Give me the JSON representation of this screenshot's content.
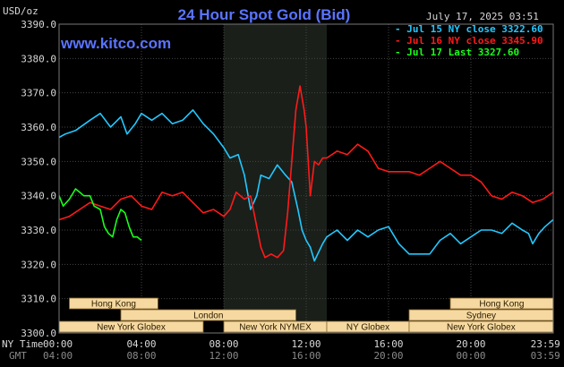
{
  "chart_data": {
    "type": "line",
    "title": "24 Hour Spot Gold (Bid)",
    "website": "www.kitco.com",
    "unit_label": "USD/oz",
    "timestamp": "July 17, 2025 03:51",
    "ylim": [
      3300,
      3390
    ],
    "yticks": [
      "3390.0",
      "3380.0",
      "3370.0",
      "3360.0",
      "3350.0",
      "3340.0",
      "3330.0",
      "3320.0",
      "3310.0",
      "3300.0"
    ],
    "xlim": [
      0,
      24
    ],
    "x_row_label_ny": "NY Time",
    "x_row_label_gmt": "GMT",
    "xticks_ny": [
      "00:00",
      "04:00",
      "08:00",
      "12:00",
      "16:00",
      "20:00",
      "23:59"
    ],
    "xticks_gmt": [
      "04:00",
      "08:00",
      "12:00",
      "16:00",
      "20:00",
      "00:00",
      "03:59"
    ],
    "grid": true,
    "legend_position": "top-right",
    "highlight_band": [
      8.0,
      13.0
    ],
    "series": [
      {
        "name": "Jul 15 NY close 3322.60",
        "color": "#22c8ff",
        "x": [
          0.0,
          0.3,
          0.8,
          1.5,
          2.0,
          2.5,
          3.0,
          3.3,
          3.7,
          4.0,
          4.5,
          5.0,
          5.5,
          6.0,
          6.5,
          7.0,
          7.5,
          8.0,
          8.3,
          8.7,
          9.0,
          9.3,
          9.6,
          9.8,
          10.2,
          10.6,
          11.0,
          11.3,
          11.6,
          11.8,
          12.0,
          12.2,
          12.4,
          12.8,
          13.0,
          13.5,
          14.0,
          14.5,
          15.0,
          15.5,
          16.0,
          16.5,
          17.0,
          17.5,
          18.0,
          18.5,
          19.0,
          19.5,
          20.0,
          20.5,
          21.0,
          21.5,
          22.0,
          22.5,
          22.8,
          23.0,
          23.3,
          23.6,
          23.99
        ],
        "y": [
          3357,
          3358,
          3359,
          3362,
          3364,
          3360,
          3363,
          3358,
          3361,
          3364,
          3362,
          3364,
          3361,
          3362,
          3365,
          3361,
          3358,
          3354,
          3351,
          3352,
          3346,
          3336,
          3340,
          3346,
          3345,
          3349,
          3346,
          3344,
          3336,
          3330,
          3327,
          3325,
          3321,
          3326,
          3328,
          3330,
          3327,
          3330,
          3328,
          3330,
          3331,
          3326,
          3323,
          3323,
          3323,
          3327,
          3329,
          3326,
          3328,
          3330,
          3330,
          3329,
          3332,
          3330,
          3329,
          3326,
          3329,
          3331,
          3333
        ]
      },
      {
        "name": "Jul 16 NY close 3345.90",
        "color": "#ff1a1a",
        "x": [
          0.0,
          0.5,
          1.0,
          1.5,
          2.0,
          2.5,
          3.0,
          3.5,
          4.0,
          4.5,
          5.0,
          5.5,
          6.0,
          6.5,
          7.0,
          7.5,
          8.0,
          8.3,
          8.6,
          9.0,
          9.3,
          9.6,
          9.8,
          10.0,
          10.3,
          10.6,
          10.9,
          11.1,
          11.3,
          11.5,
          11.7,
          11.9,
          12.0,
          12.2,
          12.4,
          12.6,
          12.8,
          13.0,
          13.5,
          14.0,
          14.5,
          15.0,
          15.5,
          16.0,
          16.5,
          17.0,
          17.5,
          18.0,
          18.5,
          19.0,
          19.5,
          20.0,
          20.5,
          21.0,
          21.5,
          22.0,
          22.5,
          23.0,
          23.5,
          23.99
        ],
        "y": [
          3333,
          3334,
          3336,
          3338,
          3337,
          3336,
          3339,
          3340,
          3337,
          3336,
          3341,
          3340,
          3341,
          3338,
          3335,
          3336,
          3334,
          3336,
          3341,
          3339,
          3340,
          3331,
          3325,
          3322,
          3323,
          3322,
          3324,
          3335,
          3350,
          3365,
          3372,
          3365,
          3360,
          3340,
          3350,
          3349,
          3351,
          3351,
          3353,
          3352,
          3355,
          3353,
          3348,
          3347,
          3347,
          3347,
          3346,
          3348,
          3350,
          3348,
          3346,
          3346,
          3344,
          3340,
          3339,
          3341,
          3340,
          3338,
          3339,
          3341
        ]
      },
      {
        "name": "Jul 17 Last 3327.60",
        "color": "#1aff1a",
        "x": [
          0.0,
          0.2,
          0.5,
          0.8,
          1.0,
          1.2,
          1.5,
          1.7,
          2.0,
          2.2,
          2.4,
          2.6,
          2.8,
          3.0,
          3.2,
          3.4,
          3.6,
          3.8,
          4.0
        ],
        "y": [
          3340,
          3337,
          3339,
          3342,
          3341,
          3340,
          3340,
          3337,
          3336,
          3331,
          3329,
          3328,
          3333,
          3336,
          3335,
          3331,
          3328,
          3328,
          3327
        ]
      }
    ],
    "session_bars": [
      {
        "label": "Hong Kong",
        "start": 0.5,
        "end": 4.8,
        "row": 0
      },
      {
        "label": "Hong Kong",
        "start": 19.0,
        "end": 23.99,
        "row": 0
      },
      {
        "label": "London",
        "start": 3.0,
        "end": 11.5,
        "row": 1
      },
      {
        "label": "Sydney",
        "start": 17.0,
        "end": 23.99,
        "row": 1
      },
      {
        "label": "New York Globex",
        "start": 0.0,
        "end": 7.0,
        "row": 2
      },
      {
        "label": "New York NYMEX",
        "start": 8.0,
        "end": 13.0,
        "row": 2
      },
      {
        "label": "NY Globex",
        "start": 13.0,
        "end": 17.0,
        "row": 2
      },
      {
        "label": "New York Globex",
        "start": 17.0,
        "end": 23.99,
        "row": 2
      }
    ],
    "session_color": "#f5d9a0"
  }
}
